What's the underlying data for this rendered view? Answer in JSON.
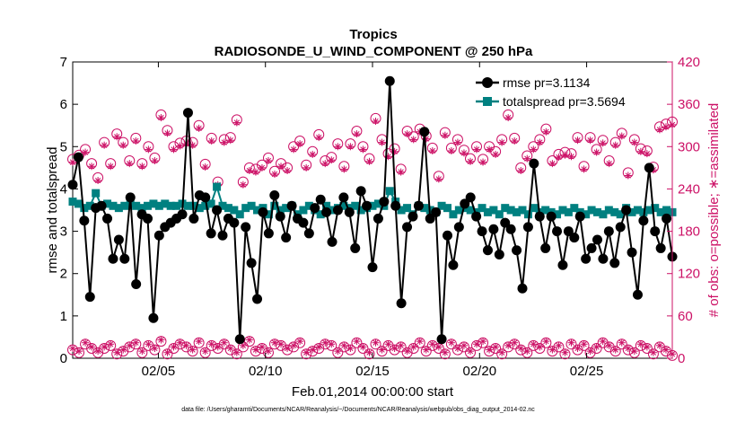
{
  "chart_data": {
    "type": "line",
    "title": "Tropics",
    "subtitle": "RADIOSONDE_U_WIND_COMPONENT @ 250 hPa",
    "xlabel": "Feb.01,2014 00:00:00 start",
    "ylabel_left": "rmse and totalspread",
    "ylabel_right": "# of obs: o=possible; ∗=assimilated",
    "footnote": "data file: /Users/gharamti/Documents/NCAR/Reanalysis/~/Documents/NCAR/Reanalysis/webpub/obs_diag_output_2014-02.nc",
    "x_range_days": [
      1,
      29
    ],
    "ylim_left": [
      0,
      7
    ],
    "ylim_right": [
      0,
      420
    ],
    "x_ticks": [
      {
        "day": 5,
        "label": "02/05"
      },
      {
        "day": 10,
        "label": "02/10"
      },
      {
        "day": 15,
        "label": "02/15"
      },
      {
        "day": 20,
        "label": "02/20"
      },
      {
        "day": 25,
        "label": "02/25"
      }
    ],
    "y_ticks_left": [
      "0",
      "1",
      "2",
      "3",
      "4",
      "5",
      "6",
      "7"
    ],
    "y_ticks_right": [
      "0",
      "60",
      "120",
      "180",
      "240",
      "300",
      "360",
      "420"
    ],
    "colors": {
      "rmse": "#000000",
      "spread": "#008080",
      "obs": "#cc1166",
      "axis": "#000000"
    },
    "legend": [
      {
        "name": "rmse pr=3.1134",
        "series": "rmse"
      },
      {
        "name": "totalspread pr=3.5694",
        "series": "spread"
      }
    ],
    "rmse": [
      4.1,
      4.75,
      3.25,
      1.45,
      3.55,
      3.6,
      3.3,
      2.35,
      2.8,
      2.35,
      3.8,
      1.75,
      3.4,
      3.3,
      0.95,
      2.9,
      3.1,
      3.2,
      3.3,
      3.4,
      5.8,
      3.3,
      3.85,
      3.8,
      2.95,
      3.5,
      2.9,
      3.3,
      3.2,
      0.45,
      3.1,
      2.25,
      1.4,
      3.45,
      2.95,
      3.85,
      3.35,
      2.85,
      3.6,
      3.3,
      3.2,
      2.95,
      3.55,
      3.75,
      3.45,
      2.75,
      3.5,
      3.8,
      3.45,
      2.6,
      3.95,
      3.6,
      2.15,
      3.3,
      3.7,
      6.55,
      3.6,
      1.3,
      3.1,
      3.35,
      3.6,
      5.35,
      3.3,
      3.45,
      0.45,
      2.9,
      2.2,
      3.1,
      3.65,
      3.8,
      3.35,
      3.0,
      2.55,
      3.05,
      2.45,
      3.2,
      3.05,
      2.55,
      1.65,
      3.1,
      4.6,
      3.35,
      2.6,
      3.35,
      3.0,
      2.2,
      3.0,
      2.85,
      3.35,
      2.35,
      2.6,
      2.8,
      2.35,
      3.0,
      2.25,
      3.1,
      3.5,
      2.5,
      1.5,
      3.25,
      4.5,
      3.0,
      2.6,
      3.3,
      2.4
    ],
    "spread": [
      3.7,
      3.65,
      3.55,
      3.6,
      3.9,
      3.6,
      3.65,
      3.6,
      3.55,
      3.6,
      3.65,
      3.6,
      3.55,
      3.6,
      3.65,
      3.6,
      3.65,
      3.6,
      3.6,
      3.65,
      3.6,
      3.6,
      3.55,
      3.6,
      3.65,
      4.05,
      3.6,
      3.55,
      3.5,
      3.4,
      3.55,
      3.6,
      3.5,
      3.55,
      3.4,
      3.6,
      3.5,
      3.55,
      3.6,
      3.4,
      3.5,
      3.6,
      3.5,
      3.4,
      3.6,
      3.5,
      3.55,
      3.6,
      3.55,
      3.6,
      3.5,
      3.55,
      3.6,
      3.65,
      3.6,
      3.95,
      3.7,
      3.5,
      3.55,
      3.4,
      3.6,
      3.55,
      3.5,
      3.45,
      3.6,
      3.55,
      3.4,
      3.5,
      3.55,
      3.5,
      3.45,
      3.55,
      3.45,
      3.5,
      3.4,
      3.55,
      3.5,
      3.45,
      3.5,
      3.4,
      3.55,
      3.45,
      3.5,
      3.45,
      3.4,
      3.5,
      3.45,
      3.55,
      3.45,
      3.4,
      3.5,
      3.45,
      3.4,
      3.5,
      3.45,
      3.4,
      3.55,
      3.45,
      3.5,
      3.45,
      3.5,
      3.55,
      3.45,
      3.5,
      3.45
    ],
    "obs_possible_upper": [
      282,
      288,
      296,
      276,
      256,
      306,
      276,
      318,
      306,
      280,
      312,
      276,
      300,
      284,
      345,
      323,
      300,
      305,
      308,
      306,
      330,
      275,
      312,
      250,
      310,
      313,
      338,
      250,
      270,
      268,
      274,
      284,
      265,
      276,
      270,
      300,
      308,
      274,
      293,
      317,
      280,
      285,
      304,
      272,
      304,
      322,
      300,
      283,
      340,
      310,
      290,
      297,
      268,
      322,
      314,
      325,
      315,
      298,
      258,
      320,
      298,
      310,
      295,
      283,
      300,
      282,
      300,
      293,
      310,
      345,
      312,
      270,
      287,
      300,
      310,
      325,
      280,
      289,
      292,
      290,
      313,
      272,
      313,
      296,
      309,
      280,
      306,
      319,
      263,
      310,
      297,
      294,
      271,
      328,
      332,
      335
    ],
    "obs_possible_lower": [
      12,
      8,
      20,
      14,
      8,
      14,
      18,
      6,
      10,
      16,
      20,
      8,
      18,
      12,
      24,
      6,
      14,
      20,
      16,
      10,
      22,
      8,
      18,
      14,
      20,
      12,
      6,
      16,
      24,
      10,
      14,
      8,
      20,
      18,
      12,
      16,
      22,
      6,
      10,
      14,
      20,
      18,
      8,
      16,
      12,
      22,
      14,
      6,
      20,
      10,
      18,
      12,
      16,
      8,
      14,
      22,
      10,
      18,
      14,
      6,
      20,
      12,
      16,
      8,
      18,
      22,
      10,
      14,
      6,
      16,
      20,
      12,
      8,
      18,
      14,
      22,
      10,
      16,
      6,
      20,
      12,
      18,
      8,
      14,
      22,
      16,
      10,
      20,
      12,
      8,
      18,
      14,
      6,
      16,
      10,
      4
    ],
    "obs_assimilated_upper": [
      278,
      284,
      292,
      272,
      252,
      302,
      272,
      314,
      302,
      276,
      308,
      272,
      296,
      280,
      341,
      319,
      296,
      301,
      304,
      302,
      326,
      271,
      308,
      246,
      306,
      309,
      334,
      246,
      266,
      264,
      270,
      280,
      261,
      272,
      266,
      296,
      304,
      270,
      289,
      313,
      276,
      281,
      300,
      268,
      300,
      318,
      296,
      279,
      336,
      306,
      286,
      293,
      264,
      318,
      310,
      321,
      311,
      294,
      254,
      316,
      294,
      306,
      291,
      279,
      296,
      278,
      296,
      289,
      306,
      341,
      308,
      266,
      283,
      296,
      306,
      321,
      276,
      285,
      288,
      286,
      309,
      268,
      309,
      292,
      305,
      276,
      302,
      315,
      259,
      306,
      293,
      290,
      267,
      324,
      328,
      331
    ],
    "obs_assimilated_lower": [
      14,
      10,
      22,
      16,
      10,
      16,
      20,
      8,
      12,
      18,
      22,
      10,
      20,
      14,
      26,
      8,
      16,
      22,
      18,
      12,
      24,
      10,
      20,
      16,
      22,
      14,
      8,
      18,
      26,
      12,
      16,
      10,
      22,
      20,
      14,
      18,
      24,
      8,
      12,
      16,
      22,
      20,
      10,
      18,
      14,
      24,
      16,
      8,
      22,
      12,
      20,
      14,
      18,
      10,
      16,
      24,
      12,
      20,
      16,
      8,
      22,
      14,
      18,
      10,
      20,
      24,
      12,
      16,
      8,
      18,
      22,
      14,
      10,
      20,
      16,
      24,
      12,
      18,
      8,
      22,
      14,
      20,
      10,
      16,
      24,
      18,
      12,
      22,
      14,
      10,
      20,
      16,
      8,
      18,
      12,
      6
    ]
  }
}
